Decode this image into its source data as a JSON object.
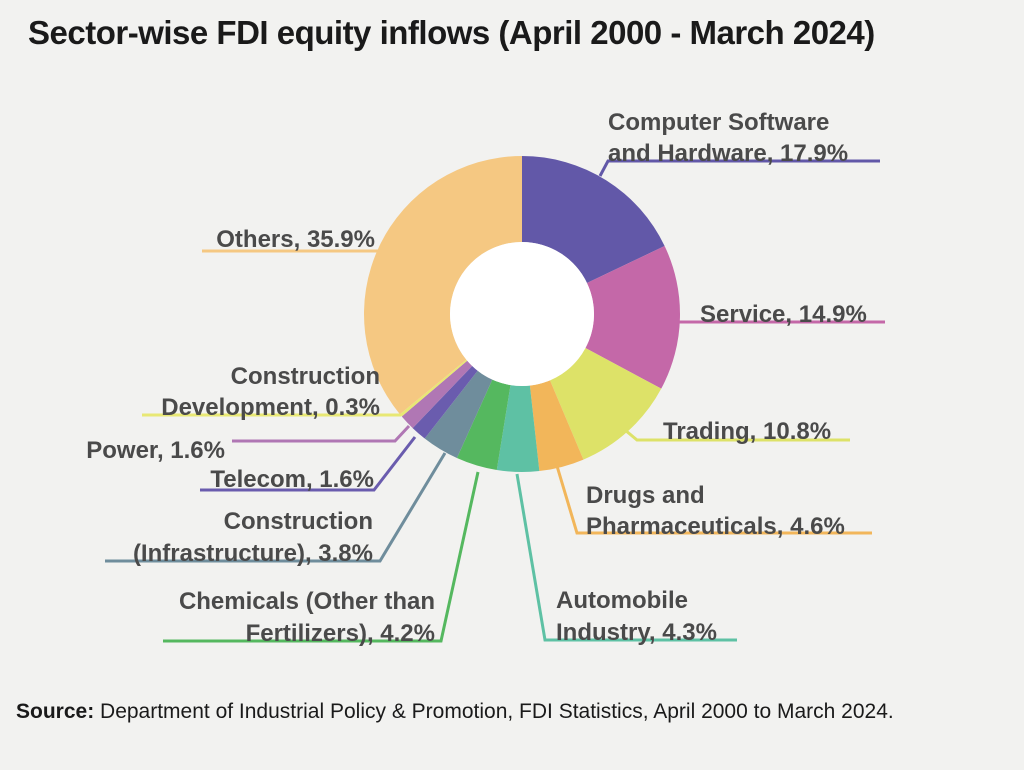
{
  "chart_data": {
    "type": "pie",
    "title": "Sector-wise FDI equity inflows (April 2000 - March 2024)",
    "unit": "%",
    "slices": [
      {
        "label": "Computer Software and Hardware, 17.9%",
        "value": 17.9,
        "color": "#6258a8"
      },
      {
        "label": "Service, 14.9%",
        "value": 14.9,
        "color": "#c468a8"
      },
      {
        "label": "Trading, 10.8%",
        "value": 10.8,
        "color": "#dde268"
      },
      {
        "label": "Drugs and Pharmaceuticals, 4.6%",
        "value": 4.6,
        "color": "#f2b65a"
      },
      {
        "label": "Automobile Industry, 4.3%",
        "value": 4.3,
        "color": "#5ec1a4"
      },
      {
        "label": "Chemicals (Other than Fertilizers), 4.2%",
        "value": 4.2,
        "color": "#55b85f"
      },
      {
        "label": "Construction (Infrastructure), 3.8%",
        "value": 3.8,
        "color": "#6f8d9c"
      },
      {
        "label": "Telecom, 1.6%",
        "value": 1.6,
        "color": "#6a5cae"
      },
      {
        "label": "Power, 1.6%",
        "value": 1.6,
        "color": "#b077b4"
      },
      {
        "label": "Construction Development, 0.3%",
        "value": 0.3,
        "color": "#e8e874"
      },
      {
        "label": "Others, 35.9%",
        "value": 35.9,
        "color": "#f5c882"
      }
    ]
  },
  "source": {
    "label": "Source:",
    "text": " Department of Industrial Policy & Promotion, FDI Statistics, April 2000 to March 2024."
  }
}
